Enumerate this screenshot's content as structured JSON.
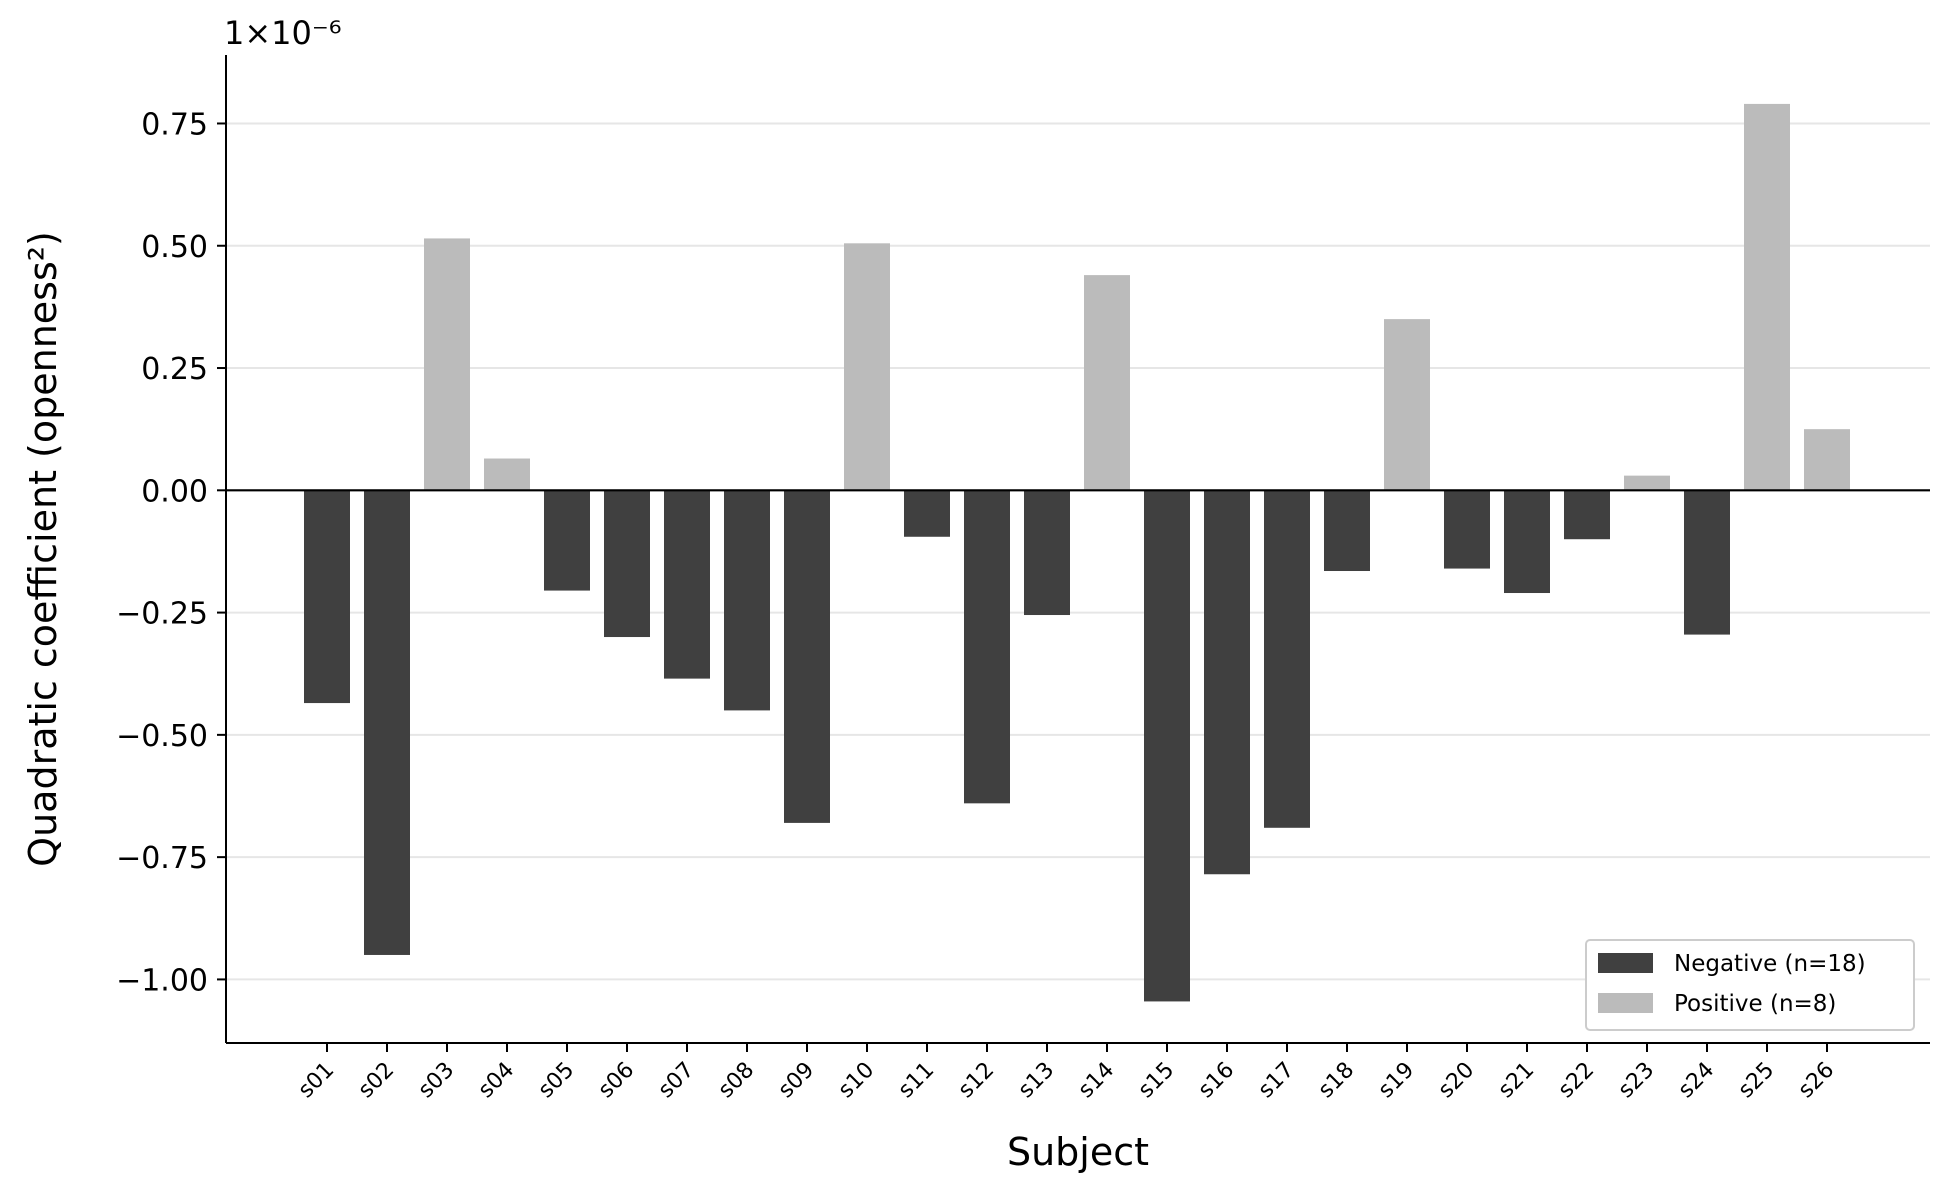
{
  "chart_data": {
    "type": "bar",
    "xlabel": "Subject",
    "ylabel": "Quadratic coefficient (openness²)",
    "scale_multiplier": "1×10⁻⁶",
    "ylim": [
      -1.13,
      0.89
    ],
    "yticks": [
      0.75,
      0.5,
      0.25,
      0.0,
      -0.25,
      -0.5,
      -0.75,
      -1.0
    ],
    "ytick_labels": [
      "0.75",
      "0.50",
      "0.25",
      "0.00",
      "−0.25",
      "−0.50",
      "−0.75",
      "−1.00"
    ],
    "grid": "horizontal",
    "legend_position": "bottom-right",
    "categories": [
      "s01",
      "s02",
      "s03",
      "s04",
      "s05",
      "s06",
      "s07",
      "s08",
      "s09",
      "s10",
      "s11",
      "s12",
      "s13",
      "s14",
      "s15",
      "s16",
      "s17",
      "s18",
      "s19",
      "s20",
      "s21",
      "s22",
      "s23",
      "s24",
      "s25",
      "s26"
    ],
    "values": [
      -0.435,
      -0.95,
      0.515,
      0.065,
      -0.205,
      -0.3,
      -0.385,
      -0.45,
      -0.68,
      0.505,
      -0.095,
      -0.64,
      -0.255,
      0.44,
      -1.045,
      -0.785,
      -0.69,
      -0.165,
      0.35,
      -0.16,
      -0.21,
      -0.1,
      0.03,
      -0.295,
      0.79,
      0.125
    ],
    "series": [
      {
        "name": "Negative (n=18)",
        "color": "#404040"
      },
      {
        "name": "Positive (n=8)",
        "color": "#bbbbbb"
      }
    ]
  }
}
